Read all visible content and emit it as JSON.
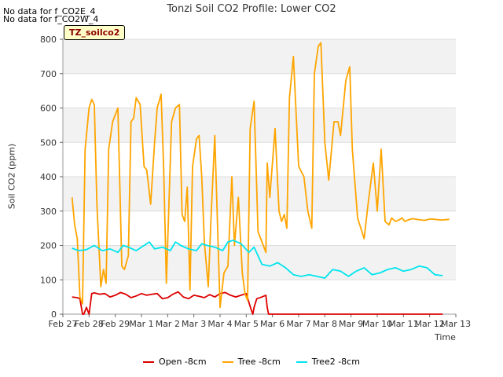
{
  "header": {
    "title": "Tonzi Soil CO2 Profile: Lower CO2",
    "nodata_1": "No data for f_CO2E_4",
    "nodata_2": "No data for f_CO2W_4",
    "site_badge": "TZ_soilco2"
  },
  "chart_data": {
    "type": "line",
    "title": "Tonzi Soil CO2 Profile: Lower CO2",
    "xlabel": "Time",
    "ylabel": "Soil CO2 (ppm)",
    "ylim": [
      0,
      800
    ],
    "yticks": [
      0,
      100,
      200,
      300,
      400,
      500,
      600,
      700,
      800
    ],
    "xlim": [
      0,
      15
    ],
    "xticks": [
      0,
      1,
      2,
      3,
      4,
      5,
      6,
      7,
      8,
      9,
      10,
      11,
      12,
      13,
      14,
      15
    ],
    "xtick_labels": [
      "Feb 27",
      "Feb 28",
      "Feb 29",
      "Mar 1",
      "Mar 2",
      "Mar 3",
      "Mar 4",
      "Mar 5",
      "Mar 6",
      "Mar 7",
      "Mar 8",
      "Mar 9",
      "Mar 10",
      "Mar 11",
      "Mar 12",
      "Mar 13"
    ],
    "legend_position": "bottom",
    "grid": true,
    "series": [
      {
        "name": "Open -8cm",
        "color": "#dd0000",
        "x": [
          0.35,
          0.55,
          0.65,
          0.75,
          0.8,
          0.9,
          1.0,
          1.1,
          1.2,
          1.4,
          1.6,
          1.8,
          2.0,
          2.2,
          2.4,
          2.6,
          2.8,
          3.0,
          3.2,
          3.4,
          3.6,
          3.8,
          4.0,
          4.2,
          4.4,
          4.6,
          4.8,
          5.0,
          5.2,
          5.4,
          5.6,
          5.8,
          6.0,
          6.2,
          6.4,
          6.6,
          6.8,
          7.0,
          7.2,
          7.25,
          7.3,
          7.4,
          7.6,
          7.75,
          7.8,
          7.85,
          14.5
        ],
        "y": [
          50,
          48,
          45,
          0,
          0,
          20,
          0,
          60,
          62,
          58,
          60,
          50,
          55,
          63,
          58,
          48,
          53,
          60,
          55,
          58,
          60,
          45,
          48,
          58,
          65,
          50,
          45,
          55,
          52,
          48,
          57,
          50,
          60,
          63,
          55,
          50,
          55,
          60,
          10,
          0,
          20,
          45,
          50,
          55,
          20,
          0,
          0
        ]
      },
      {
        "name": "Tree -8cm",
        "color": "#ffa500",
        "x": [
          0.35,
          0.45,
          0.55,
          0.65,
          0.75,
          0.85,
          1.0,
          1.1,
          1.2,
          1.3,
          1.45,
          1.55,
          1.65,
          1.75,
          1.9,
          2.1,
          2.25,
          2.35,
          2.5,
          2.6,
          2.7,
          2.8,
          2.95,
          3.1,
          3.2,
          3.35,
          3.5,
          3.6,
          3.75,
          3.85,
          3.95,
          4.15,
          4.3,
          4.45,
          4.55,
          4.65,
          4.75,
          4.85,
          4.95,
          5.1,
          5.2,
          5.3,
          5.4,
          5.55,
          5.65,
          5.8,
          6.0,
          6.15,
          6.3,
          6.45,
          6.55,
          6.7,
          6.85,
          6.95,
          7.05,
          7.15,
          7.3,
          7.45,
          7.65,
          7.75,
          7.8,
          7.9,
          8.1,
          8.25,
          8.35,
          8.45,
          8.55,
          8.65,
          8.8,
          9.0,
          9.2,
          9.35,
          9.5,
          9.6,
          9.75,
          9.85,
          10.0,
          10.15,
          10.35,
          10.5,
          10.6,
          10.8,
          10.95,
          11.05,
          11.25,
          11.5,
          11.65,
          11.85,
          12.0,
          12.15,
          12.3,
          12.45,
          12.55,
          12.7,
          12.85,
          12.95,
          13.05,
          13.2,
          13.35,
          13.5,
          13.7,
          13.8,
          13.9,
          14.05,
          14.2,
          14.3,
          14.45,
          14.6,
          14.75
        ],
        "y": [
          340,
          260,
          220,
          50,
          30,
          480,
          600,
          625,
          610,
          320,
          80,
          130,
          90,
          480,
          560,
          600,
          140,
          130,
          170,
          560,
          570,
          630,
          610,
          430,
          420,
          320,
          500,
          600,
          640,
          420,
          90,
          560,
          600,
          610,
          290,
          270,
          370,
          70,
          430,
          510,
          520,
          400,
          210,
          80,
          270,
          520,
          20,
          120,
          140,
          400,
          200,
          340,
          120,
          60,
          40,
          540,
          620,
          240,
          200,
          180,
          440,
          340,
          540,
          300,
          270,
          290,
          250,
          630,
          750,
          430,
          400,
          300,
          250,
          700,
          780,
          790,
          500,
          390,
          560,
          560,
          520,
          680,
          720,
          480,
          280,
          220,
          320,
          440,
          300,
          480,
          270,
          260,
          280,
          270,
          275,
          280,
          270,
          275,
          278,
          276,
          274,
          273,
          275,
          277,
          276,
          275,
          274,
          275,
          276
        ],
        "x_end_note": ""
      },
      {
        "name": "Tree2 -8cm",
        "color": "#00e5ee",
        "x": [
          0.35,
          0.6,
          0.9,
          1.2,
          1.5,
          1.8,
          2.1,
          2.3,
          2.5,
          2.8,
          3.1,
          3.3,
          3.5,
          3.8,
          4.1,
          4.3,
          4.5,
          4.8,
          5.1,
          5.3,
          5.5,
          5.8,
          6.1,
          6.3,
          6.5,
          6.8,
          7.1,
          7.3,
          7.6,
          7.9,
          8.2,
          8.5,
          8.8,
          9.1,
          9.4,
          9.7,
          10.0,
          10.3,
          10.6,
          10.9,
          11.2,
          11.5,
          11.8,
          12.1,
          12.4,
          12.7,
          13.0,
          13.3,
          13.6,
          13.9,
          14.2,
          14.5
        ],
        "y": [
          192,
          185,
          188,
          200,
          185,
          190,
          180,
          200,
          195,
          185,
          200,
          210,
          190,
          195,
          185,
          210,
          200,
          190,
          185,
          205,
          200,
          195,
          185,
          210,
          215,
          205,
          180,
          195,
          145,
          140,
          150,
          135,
          115,
          110,
          115,
          110,
          105,
          130,
          125,
          110,
          125,
          135,
          115,
          120,
          130,
          135,
          125,
          130,
          140,
          135,
          115,
          112
        ]
      }
    ]
  },
  "legend": {
    "items": [
      "Open -8cm",
      "Tree -8cm",
      "Tree2 -8cm"
    ]
  }
}
